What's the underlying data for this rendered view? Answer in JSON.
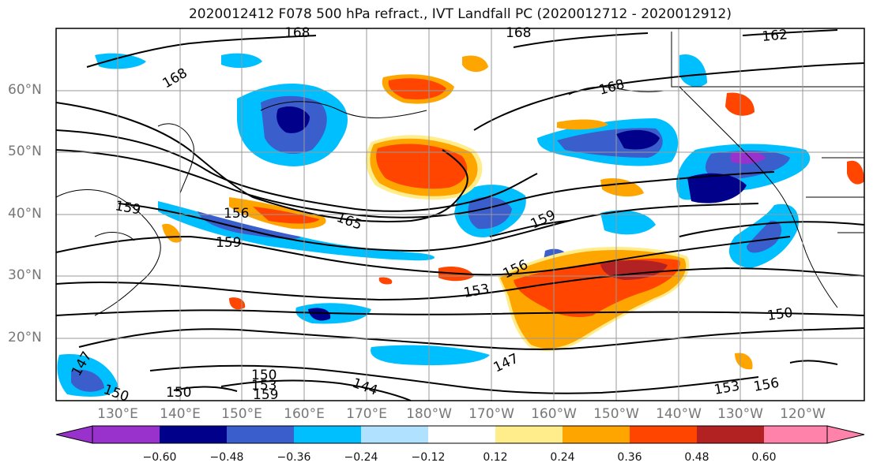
{
  "title": "2020012412 F078 500 hPa refract., IVT Landfall PC (2020012712 - 2020012912)",
  "map": {
    "lat_labels": [
      "60°N",
      "50°N",
      "40°N",
      "30°N",
      "20°N"
    ],
    "lon_labels": [
      "130°E",
      "140°E",
      "150°E",
      "160°E",
      "170°E",
      "180°W",
      "170°W",
      "160°W",
      "150°W",
      "140°W",
      "130°W",
      "120°W"
    ],
    "contour_labels": [
      "168",
      "168",
      "162",
      "168",
      "168",
      "159",
      "156",
      "165",
      "159",
      "159",
      "156",
      "153",
      "150",
      "147",
      "144",
      "150",
      "153",
      "159",
      "147",
      "150",
      "153",
      "156",
      "150"
    ]
  },
  "colorbar": {
    "ticks": [
      "−0.60",
      "−0.48",
      "−0.36",
      "−0.24",
      "−0.12",
      "0.12",
      "0.24",
      "0.36",
      "0.48",
      "0.60"
    ],
    "colors": [
      "#9932CC",
      "#00008B",
      "#3A5FCD",
      "#00BFFF",
      "#B0E2FF",
      "#FFFFFF",
      "#FFEC8B",
      "#FFA500",
      "#FF4500",
      "#B22222",
      "#FF82AB"
    ]
  }
}
